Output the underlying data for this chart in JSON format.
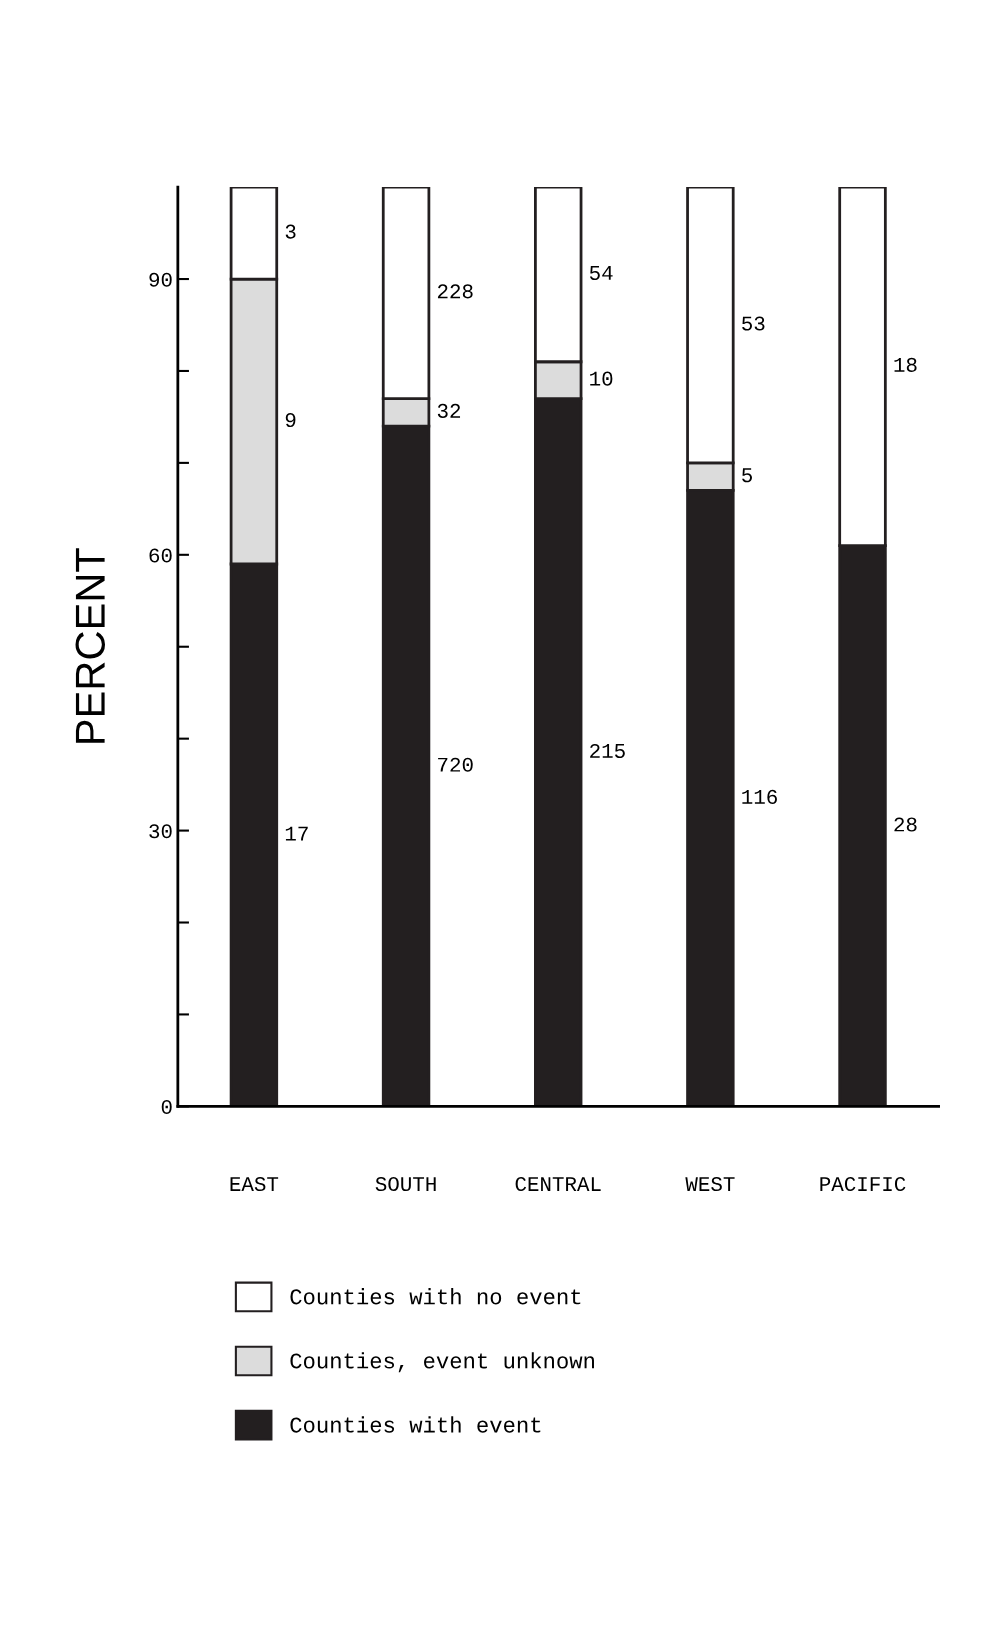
{
  "chart_data": {
    "type": "bar",
    "stacked": true,
    "ylabel": "PERCENT",
    "categories": [
      "EAST",
      "SOUTH",
      "CENTRAL",
      "WEST",
      "PACIFIC"
    ],
    "series": [
      {
        "name": "Counties with event",
        "color": "#231f20",
        "values": [
          59,
          74,
          77,
          67,
          61
        ]
      },
      {
        "name": "Counties, event unknown",
        "color": "#dcdcdc",
        "values": [
          31,
          3,
          4,
          3,
          0
        ]
      },
      {
        "name": "Counties with no event",
        "color": "#ffffff",
        "values": [
          10,
          23,
          19,
          30,
          39
        ]
      }
    ],
    "annotations": [
      "3",
      "9",
      "17",
      "228",
      "32",
      "720",
      "54",
      "10",
      "215",
      "53",
      "5",
      "116",
      "18",
      "28"
    ],
    "ylim": [
      0,
      100
    ],
    "yticks": [
      0,
      {
        "value": 10,
        "label": null
      },
      {
        "value": 20,
        "label": null
      },
      30,
      {
        "value": 40,
        "label": null
      },
      {
        "value": 50,
        "label": null
      },
      60,
      {
        "value": 70,
        "label": null
      },
      {
        "value": 80,
        "label": null
      },
      90
    ],
    "grid": false,
    "legend": "bottom"
  }
}
